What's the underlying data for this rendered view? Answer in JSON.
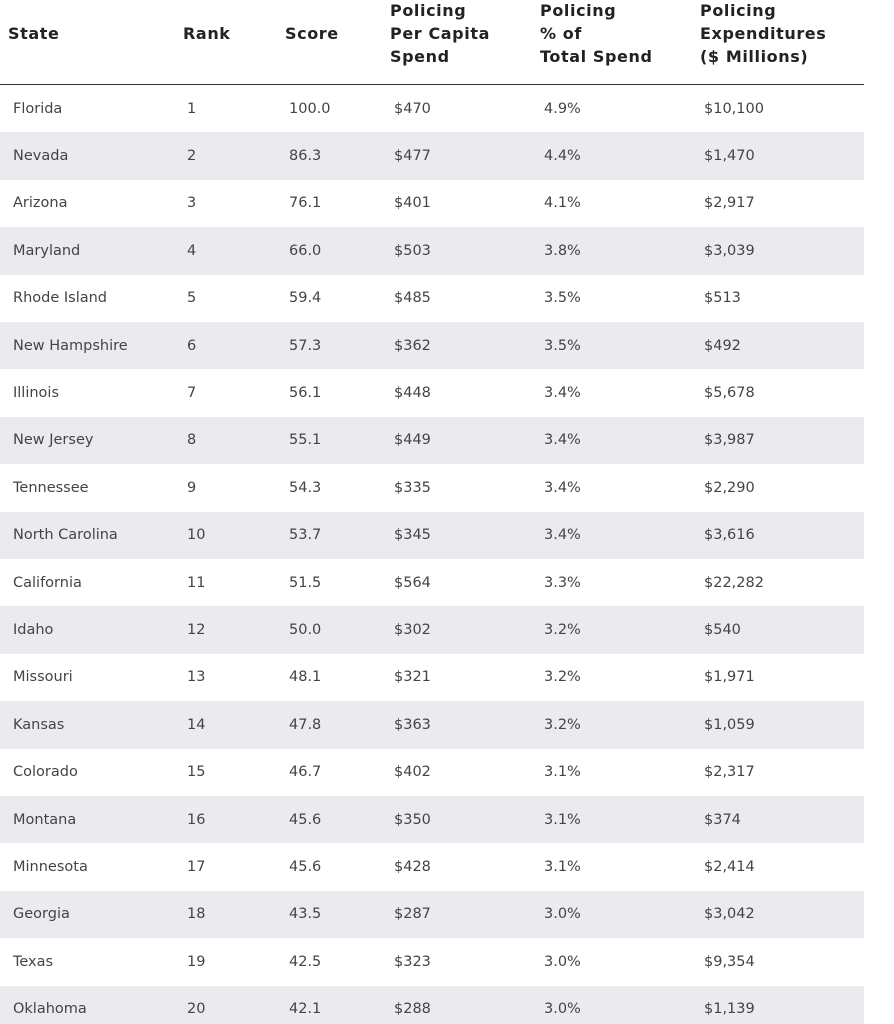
{
  "table": {
    "headers": [
      [
        "State"
      ],
      [
        "Rank"
      ],
      [
        "Score"
      ],
      [
        "Policing",
        "Per Capita",
        "Spend"
      ],
      [
        "Policing",
        "% of",
        "Total Spend"
      ],
      [
        "Policing",
        "Expenditures",
        "($ Millions)"
      ]
    ],
    "rows": [
      [
        "Florida",
        "1",
        "100.0",
        "$470",
        "4.9%",
        "$10,100"
      ],
      [
        "Nevada",
        "2",
        "86.3",
        "$477",
        "4.4%",
        "$1,470"
      ],
      [
        "Arizona",
        "3",
        "76.1",
        "$401",
        "4.1%",
        "$2,917"
      ],
      [
        "Maryland",
        "4",
        "66.0",
        "$503",
        "3.8%",
        "$3,039"
      ],
      [
        "Rhode Island",
        "5",
        "59.4",
        "$485",
        "3.5%",
        "$513"
      ],
      [
        "New Hampshire",
        "6",
        "57.3",
        "$362",
        "3.5%",
        "$492"
      ],
      [
        "Illinois",
        "7",
        "56.1",
        "$448",
        "3.4%",
        "$5,678"
      ],
      [
        "New Jersey",
        "8",
        "55.1",
        "$449",
        "3.4%",
        "$3,987"
      ],
      [
        "Tennessee",
        "9",
        "54.3",
        "$335",
        "3.4%",
        "$2,290"
      ],
      [
        "North Carolina",
        "10",
        "53.7",
        "$345",
        "3.4%",
        "$3,616"
      ],
      [
        "California",
        "11",
        "51.5",
        "$564",
        "3.3%",
        "$22,282"
      ],
      [
        "Idaho",
        "12",
        "50.0",
        "$302",
        "3.2%",
        "$540"
      ],
      [
        "Missouri",
        "13",
        "48.1",
        "$321",
        "3.2%",
        "$1,971"
      ],
      [
        "Kansas",
        "14",
        "47.8",
        "$363",
        "3.2%",
        "$1,059"
      ],
      [
        "Colorado",
        "15",
        "46.7",
        "$402",
        "3.1%",
        "$2,317"
      ],
      [
        "Montana",
        "16",
        "45.6",
        "$350",
        "3.1%",
        "$374"
      ],
      [
        "Minnesota",
        "17",
        "45.6",
        "$428",
        "3.1%",
        "$2,414"
      ],
      [
        "Georgia",
        "18",
        "43.5",
        "$287",
        "3.0%",
        "$3,042"
      ],
      [
        "Texas",
        "19",
        "42.5",
        "$323",
        "3.0%",
        "$9,354"
      ],
      [
        "Oklahoma",
        "20",
        "42.1",
        "$288",
        "3.0%",
        "$1,139"
      ]
    ]
  }
}
